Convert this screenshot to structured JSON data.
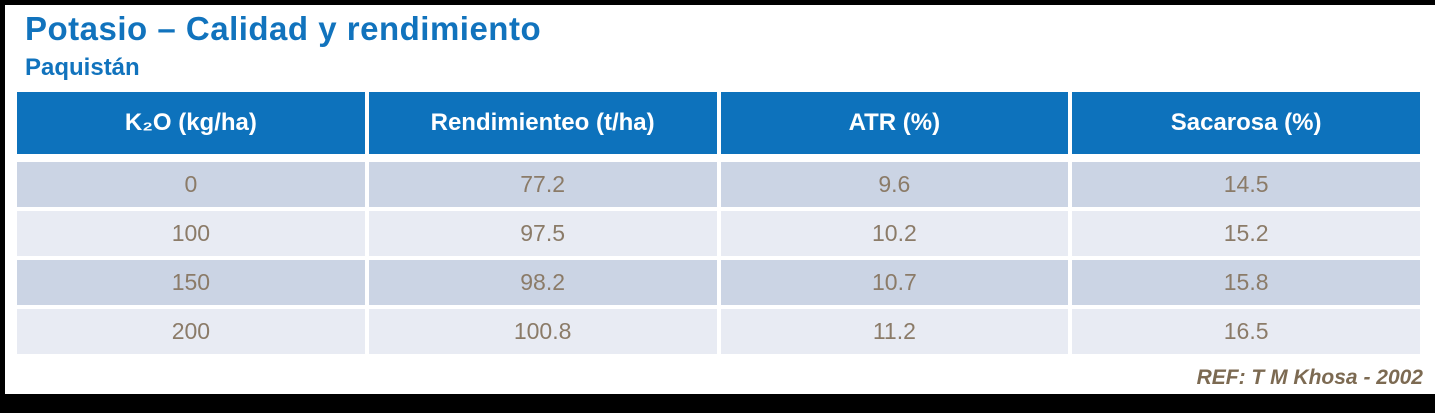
{
  "slide": {
    "title": "Potasio – Calidad y rendimiento",
    "subtitle": "Paquistán",
    "reference": "REF: T M Khosa - 2002"
  },
  "colors": {
    "title_blue": "#1173BD",
    "header_blue": "#0D72BC",
    "header_text_white": "#FFFFFF",
    "row_light": "#CBD4E4",
    "row_lighter": "#E8EBF3",
    "cell_text_brown": "#8B7B68",
    "reference_brown": "#7C6A52",
    "frame_black": "#000000"
  },
  "chart_data": {
    "type": "table",
    "title": "Potasio – Calidad y rendimiento",
    "subtitle": "Paquistán",
    "columns": [
      "K₂O (kg/ha)",
      "Rendimienteo (t/ha)",
      "ATR (%)",
      "Sacarosa (%)"
    ],
    "rows": [
      [
        "0",
        "77.2",
        "9.6",
        "14.5"
      ],
      [
        "100",
        "97.5",
        "10.2",
        "15.2"
      ],
      [
        "150",
        "98.2",
        "10.7",
        "15.8"
      ],
      [
        "200",
        "100.8",
        "11.2",
        "16.5"
      ]
    ]
  }
}
